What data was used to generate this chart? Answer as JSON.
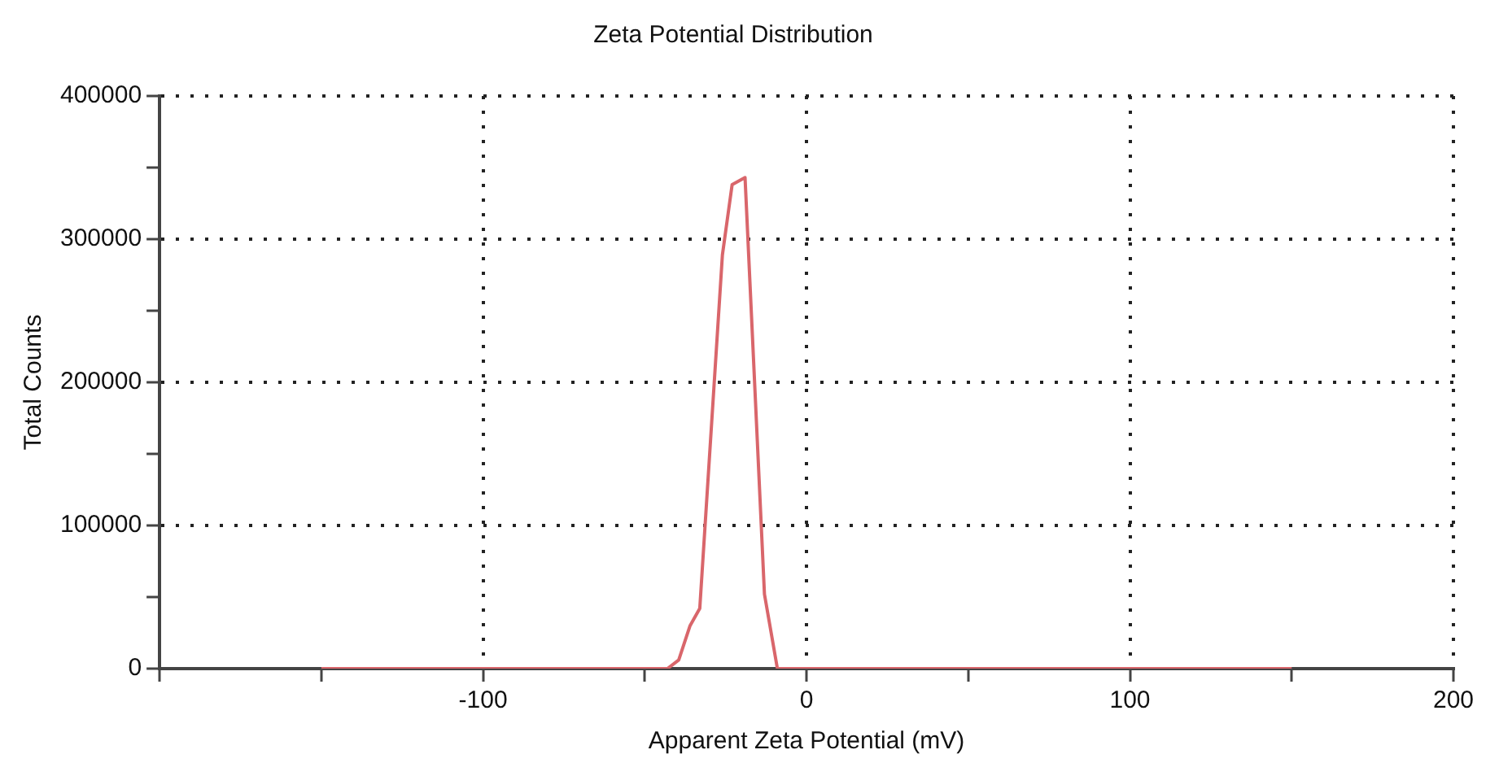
{
  "chart_data": {
    "type": "line",
    "title": "Zeta Potential Distribution",
    "xlabel": "Apparent Zeta Potential (mV)",
    "ylabel": "Total Counts",
    "x": [
      -150,
      -43,
      -39.5,
      -36,
      -33,
      -26,
      -23,
      -19,
      -13,
      -9,
      150
    ],
    "series": [
      {
        "color": "#d9666b",
        "values": [
          0,
          0,
          6000,
          30000,
          42000,
          289000,
          338000,
          343000,
          52000,
          0,
          0
        ]
      }
    ],
    "xlim": [
      -200,
      200
    ],
    "xticks": [
      {
        "value": -200,
        "label": null
      },
      {
        "value": -150,
        "label": null
      },
      -100,
      {
        "value": -50,
        "label": null
      },
      0,
      {
        "value": 50,
        "label": null
      },
      100,
      {
        "value": 150,
        "label": null
      },
      200
    ],
    "ylim": [
      0,
      400000
    ],
    "yticks": [
      0,
      {
        "value": 50000,
        "label": null
      },
      100000,
      {
        "value": 150000,
        "label": null
      },
      200000,
      {
        "value": 250000,
        "label": null
      },
      300000,
      {
        "value": 350000,
        "label": null
      },
      400000
    ],
    "grid": true,
    "legend": false,
    "marker": "none",
    "line_style": "solid"
  }
}
